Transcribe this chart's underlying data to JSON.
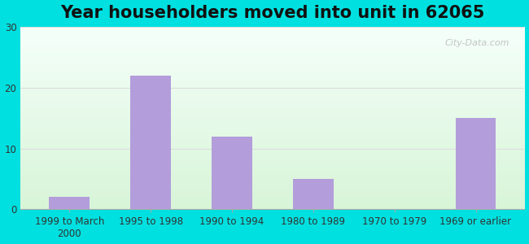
{
  "title": "Year householders moved into unit in 62065",
  "categories": [
    "1999 to March\n2000",
    "1995 to 1998",
    "1990 to 1994",
    "1980 to 1989",
    "1970 to 1979",
    "1969 or earlier"
  ],
  "values": [
    2,
    22,
    12,
    5,
    0,
    15
  ],
  "bar_color": "#b39ddb",
  "ylim": [
    0,
    30
  ],
  "yticks": [
    0,
    10,
    20,
    30
  ],
  "background_outer": "#00e0e0",
  "gradient_top": "#f5fffa",
  "gradient_bottom": "#d8f5d8",
  "grid_color": "#dddddd",
  "title_fontsize": 15,
  "tick_fontsize": 8.5,
  "watermark": "City-Data.com"
}
